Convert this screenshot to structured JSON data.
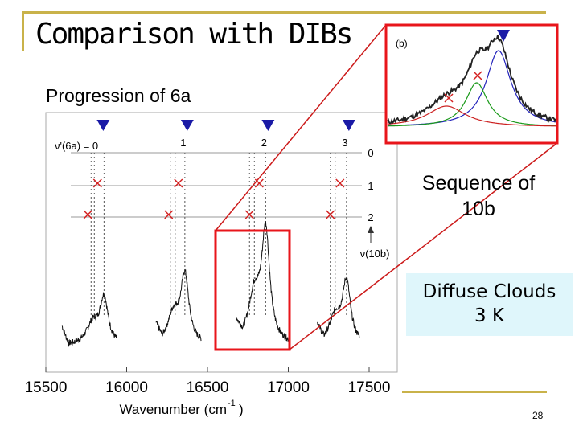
{
  "slide": {
    "title": "Comparison with DIBs",
    "subtitle": "Progression of 6a",
    "sequence_label": "Sequence of 10b",
    "diffuse_line1": "Diffuse Clouds",
    "diffuse_line2": "3 K",
    "page_number": "28"
  },
  "colors": {
    "accent": "#c9b24a",
    "highlight_box": "#e8151b",
    "marker": "#1a1aa6",
    "cross": "#d42020",
    "diffuse_bg": "#dff6fb"
  },
  "chart_data": [
    {
      "type": "line",
      "xlabel": "Wavenumber (cm",
      "xlabel_sup": "-1",
      "xlabel_tail": ")",
      "xlim": [
        15500,
        17700
      ],
      "x_ticks": [
        15500,
        16000,
        16500,
        17000,
        17500
      ],
      "x_tick_labels": [
        "15500",
        "16000",
        "16500",
        "17000",
        "17500"
      ],
      "progression_label": "ν'(6a) = 0",
      "progression_numbers": [
        "1",
        "2",
        "3"
      ],
      "progression_wavenumbers": [
        15840,
        16360,
        16860,
        17360
      ],
      "sequence_levels": [
        "0",
        "1",
        "2"
      ],
      "sequence_axis_label": "ν(10b)",
      "crosses": [
        {
          "x": 15820,
          "level": 1
        },
        {
          "x": 16320,
          "level": 1
        },
        {
          "x": 16820,
          "level": 1
        },
        {
          "x": 17320,
          "level": 1
        },
        {
          "x": 15760,
          "level": 2
        },
        {
          "x": 16260,
          "level": 2
        },
        {
          "x": 16760,
          "level": 2
        },
        {
          "x": 17260,
          "level": 2
        }
      ],
      "bands": [
        {
          "center": 15860,
          "height": 0.38
        },
        {
          "center": 16360,
          "height": 0.55
        },
        {
          "center": 16860,
          "height": 0.9
        },
        {
          "center": 17360,
          "height": 0.5
        }
      ]
    },
    {
      "type": "line",
      "panel_label": "(b)",
      "series": [
        {
          "color": "#000000",
          "description_free": true
        },
        {
          "color": "#2222bb"
        },
        {
          "color": "#1a9a1a"
        },
        {
          "color": "#cc2020"
        }
      ]
    }
  ]
}
